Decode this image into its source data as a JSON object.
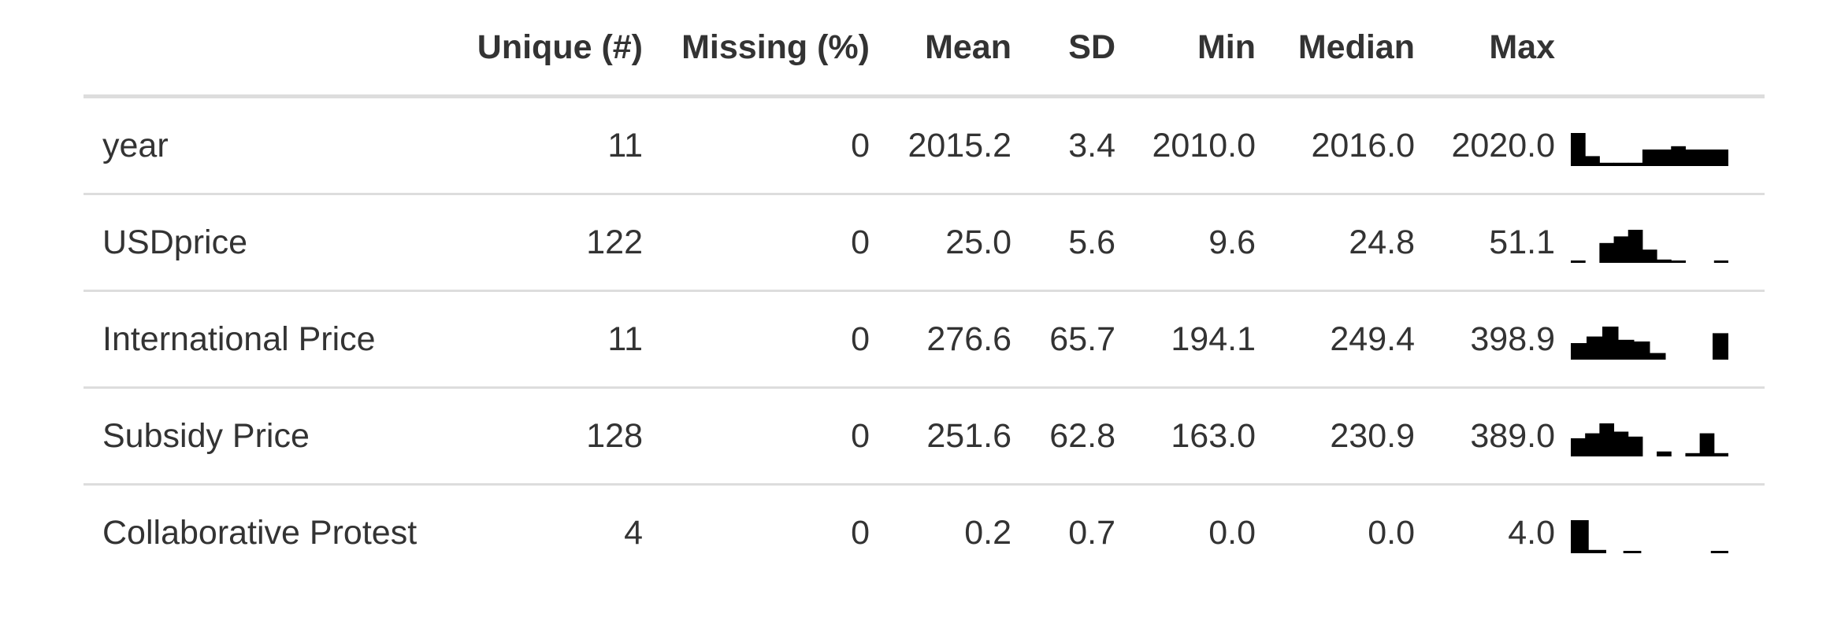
{
  "table": {
    "headers": {
      "variable": "",
      "unique": "Unique (#)",
      "missing": "Missing (%)",
      "mean": "Mean",
      "sd": "SD",
      "min": "Min",
      "median": "Median",
      "max": "Max",
      "histogram": ""
    },
    "rows": [
      {
        "variable": "year",
        "unique": "11",
        "missing": "0",
        "mean": "2015.2",
        "sd": "3.4",
        "min": "2010.0",
        "median": "2016.0",
        "max": "2020.0",
        "histogram": [
          1.0,
          0.3,
          0.1,
          0.1,
          0.1,
          0.5,
          0.5,
          0.6,
          0.5,
          0.5,
          0.5
        ]
      },
      {
        "variable": "USDprice",
        "unique": "122",
        "missing": "0",
        "mean": "25.0",
        "sd": "5.6",
        "min": "9.6",
        "median": "24.8",
        "max": "51.1",
        "histogram": [
          0.05,
          0,
          0.6,
          0.8,
          1.0,
          0.4,
          0.1,
          0.05,
          0,
          0,
          0.05
        ]
      },
      {
        "variable": "International Price",
        "unique": "11",
        "missing": "0",
        "mean": "276.6",
        "sd": "65.7",
        "min": "194.1",
        "median": "249.4",
        "max": "398.9",
        "histogram": [
          0.5,
          0.7,
          1.0,
          0.6,
          0.55,
          0.2,
          0,
          0,
          0,
          0.8
        ]
      },
      {
        "variable": "Subsidy Price",
        "unique": "128",
        "missing": "0",
        "mean": "251.6",
        "sd": "62.8",
        "min": "163.0",
        "median": "230.9",
        "max": "389.0",
        "histogram": [
          0.55,
          0.7,
          1.0,
          0.75,
          0.6,
          0,
          0.15,
          0,
          0.1,
          0.7,
          0.1
        ]
      },
      {
        "variable": "Collaborative Protest",
        "unique": "4",
        "missing": "0",
        "mean": "0.2",
        "sd": "0.7",
        "min": "0.0",
        "median": "0.0",
        "max": "4.0",
        "histogram": [
          1.0,
          0.1,
          0,
          0.05,
          0,
          0,
          0,
          0,
          0.05
        ]
      }
    ]
  }
}
